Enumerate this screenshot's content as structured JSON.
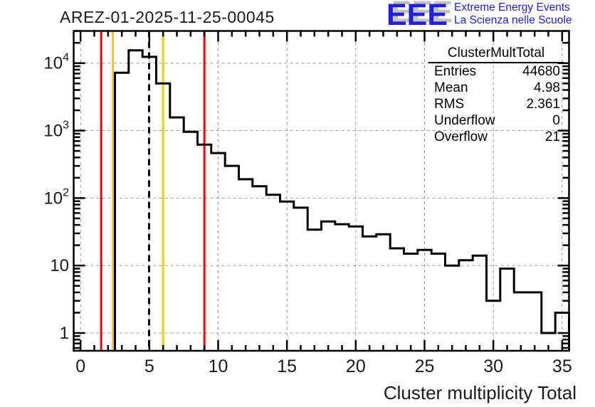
{
  "header": {
    "title": "AREZ-01-2025-11-25-00045"
  },
  "logo": {
    "acronym": "EEE",
    "line1": "Extreme Energy Events",
    "line2": "La Scienza nelle Scuole",
    "blue": "#2020dd",
    "shadow_gray": "#c2c2c2"
  },
  "stats": {
    "title": "ClusterMultTotal",
    "rows": [
      {
        "label": "Entries",
        "value": "44680"
      },
      {
        "label": "Mean",
        "value": "4.98"
      },
      {
        "label": "RMS",
        "value": "2.361"
      },
      {
        "label": "Underflow",
        "value": "0"
      },
      {
        "label": "Overflow",
        "value": "21"
      }
    ]
  },
  "chart_data": {
    "type": "bar",
    "style": "step-histogram",
    "title": "AREZ-01-2025-11-25-00045",
    "xlabel": "Cluster multiplicity Total",
    "ylabel": "",
    "y_scale": "log",
    "x_range": [
      -0.5,
      35.5
    ],
    "y_range": [
      0.545,
      30000
    ],
    "grid": true,
    "bins": {
      "first_center": 0,
      "width": 1,
      "count": 36
    },
    "values": [
      0,
      0,
      0,
      7200,
      15500,
      12400,
      5000,
      1570,
      960,
      620,
      465,
      300,
      190,
      150,
      112,
      89,
      72,
      34,
      45,
      41,
      38,
      27,
      29,
      18,
      15,
      17,
      15,
      10,
      12,
      14,
      3,
      9,
      4,
      4,
      1,
      2
    ],
    "x_ticks_major": [
      0,
      5,
      10,
      15,
      20,
      25,
      30,
      35
    ],
    "y_ticks_major": [
      {
        "value": 1,
        "label": "1",
        "exp": ""
      },
      {
        "value": 10,
        "label": "10",
        "exp": ""
      },
      {
        "value": 100,
        "label": "10",
        "exp": "2"
      },
      {
        "value": 1000,
        "label": "10",
        "exp": "3"
      },
      {
        "value": 10000,
        "label": "10",
        "exp": "4"
      }
    ],
    "threshold_lines": [
      {
        "x": 1.5,
        "color": "#f40000",
        "name": "red-low"
      },
      {
        "x": 2.5,
        "color": "#ffc800",
        "name": "yellow-low"
      },
      {
        "x": 6.0,
        "color": "#ffc800",
        "name": "yellow-high"
      },
      {
        "x": 9.0,
        "color": "#f40000",
        "name": "red-high"
      }
    ],
    "mean_line": {
      "x": 4.98,
      "color": "#000000",
      "style": "dashed"
    },
    "colors": {
      "histogram": "#000000",
      "grid": "#999999",
      "frame": "#000000"
    }
  }
}
